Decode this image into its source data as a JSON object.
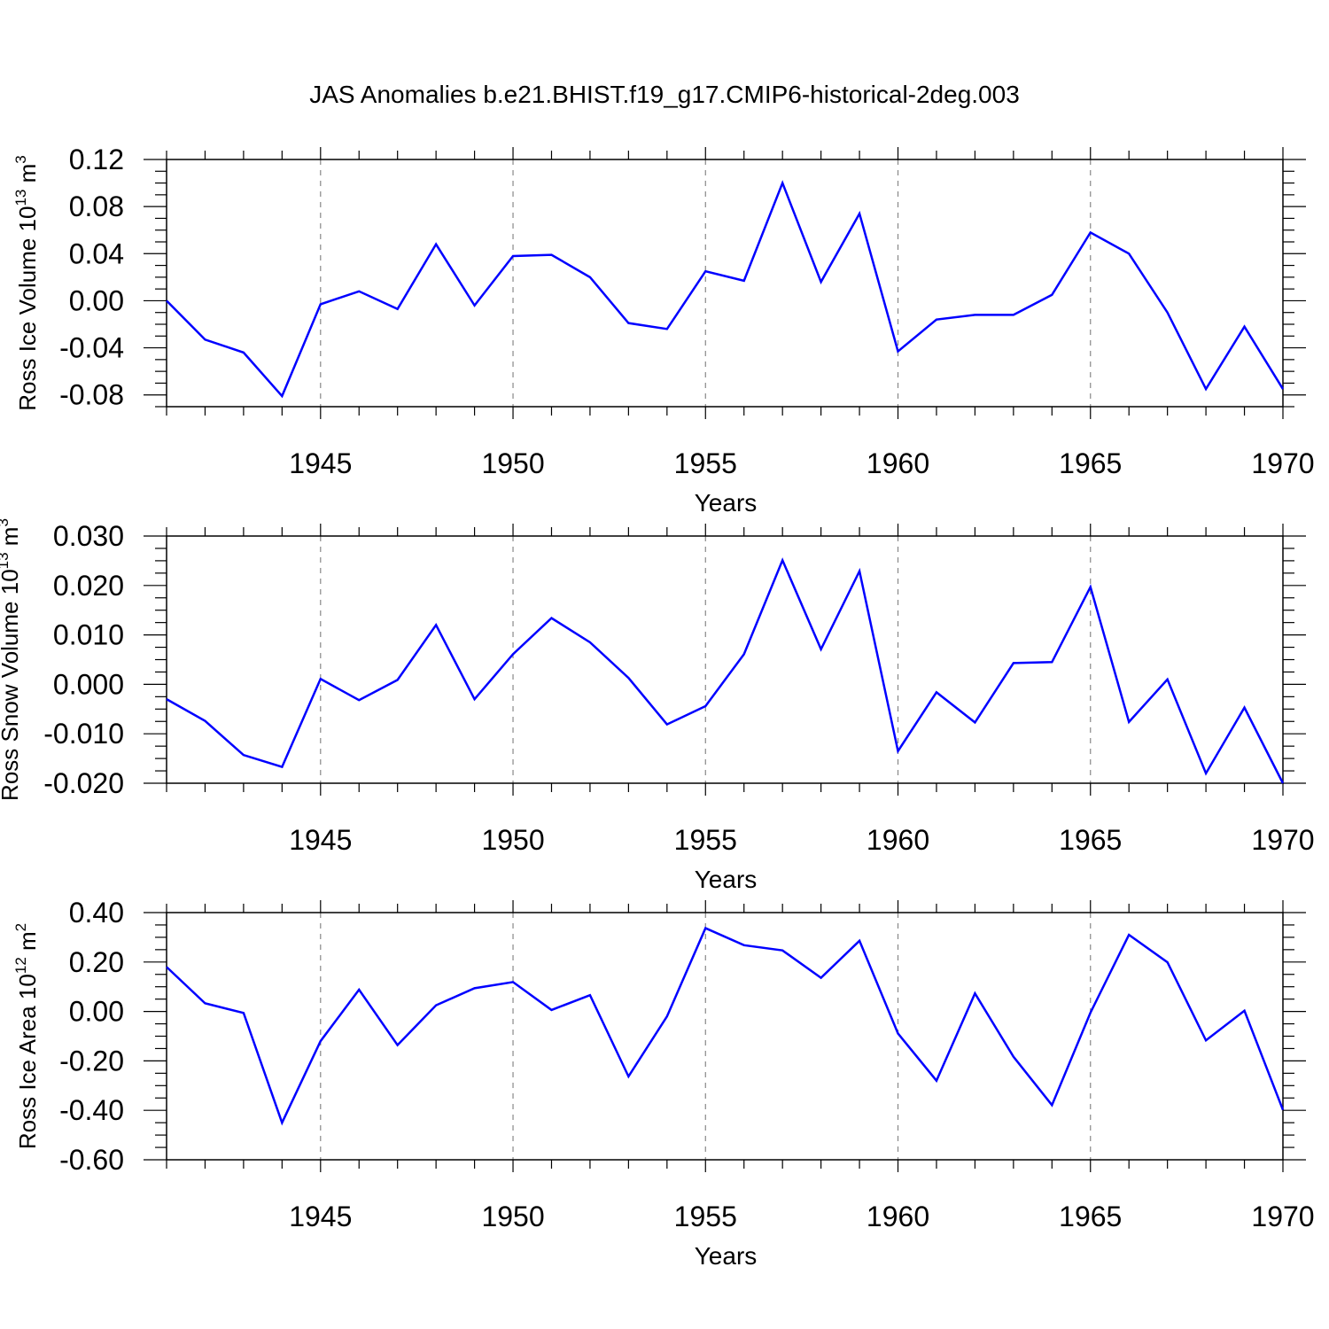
{
  "title": "JAS Anomalies b.e21.BHIST.f19_g17.CMIP6-historical-2deg.003",
  "chart_data": [
    {
      "type": "line",
      "xlabel": "Years",
      "ylabel": {
        "text": "Ross Ice Volume 10",
        "sup": "13",
        "unit": " m",
        "unit_sup": "3"
      },
      "xlim": [
        1941,
        1970
      ],
      "ylim": [
        -0.09,
        0.12
      ],
      "xticks": [
        "1945",
        "1950",
        "1955",
        "1960",
        "1965",
        "1970"
      ],
      "yticks": [
        "0.12",
        "0.08",
        "0.04",
        "0.00",
        "-0.04",
        "-0.08"
      ],
      "grid": "dashed vertical at major x ticks",
      "color": "#0000ff",
      "x": [
        1941,
        1942,
        1943,
        1944,
        1945,
        1946,
        1947,
        1948,
        1949,
        1950,
        1951,
        1952,
        1953,
        1954,
        1955,
        1956,
        1957,
        1958,
        1959,
        1960,
        1961,
        1962,
        1963,
        1964,
        1965,
        1966,
        1967,
        1968,
        1969,
        1970
      ],
      "y": [
        0.0,
        -0.033,
        -0.044,
        -0.081,
        -0.003,
        0.008,
        -0.007,
        0.048,
        -0.004,
        0.038,
        0.039,
        0.02,
        -0.019,
        -0.024,
        0.025,
        0.017,
        0.1,
        0.016,
        0.074,
        -0.043,
        -0.016,
        -0.012,
        -0.012,
        0.005,
        0.058,
        0.04,
        -0.01,
        -0.075,
        -0.022,
        -0.075
      ]
    },
    {
      "type": "line",
      "xlabel": "Years",
      "ylabel": {
        "text": "Ross Snow Volume 10",
        "sup": "13",
        "unit": " m",
        "unit_sup": "3"
      },
      "xlim": [
        1941,
        1970
      ],
      "ylim": [
        -0.02,
        0.03
      ],
      "xticks": [
        "1945",
        "1950",
        "1955",
        "1960",
        "1965",
        "1970"
      ],
      "yticks": [
        "0.030",
        "0.020",
        "0.010",
        "0.000",
        "-0.010",
        "-0.020"
      ],
      "grid": "dashed vertical at major x ticks",
      "color": "#0000ff",
      "x": [
        1941,
        1942,
        1943,
        1944,
        1945,
        1946,
        1947,
        1948,
        1949,
        1950,
        1951,
        1952,
        1953,
        1954,
        1955,
        1956,
        1957,
        1958,
        1959,
        1960,
        1961,
        1962,
        1963,
        1964,
        1965,
        1966,
        1967,
        1968,
        1969,
        1970
      ],
      "y": [
        -0.003,
        -0.0074,
        -0.0143,
        -0.0167,
        0.0011,
        -0.0032,
        0.0009,
        0.012,
        -0.003,
        0.0061,
        0.0134,
        0.0085,
        0.0013,
        -0.0081,
        -0.0044,
        0.0061,
        0.0251,
        0.0071,
        0.0229,
        -0.0135,
        -0.0016,
        -0.0077,
        0.0043,
        0.0045,
        0.0197,
        -0.0076,
        0.001,
        -0.018,
        -0.0047,
        -0.02
      ]
    },
    {
      "type": "line",
      "xlabel": "Years",
      "ylabel": {
        "text": "Ross Ice Area 10",
        "sup": "12",
        "unit": " m",
        "unit_sup": "2"
      },
      "xlim": [
        1941,
        1970
      ],
      "ylim": [
        -0.6,
        0.4
      ],
      "xticks": [
        "1945",
        "1950",
        "1955",
        "1960",
        "1965",
        "1970"
      ],
      "yticks": [
        "0.40",
        "0.20",
        "0.00",
        "-0.20",
        "-0.40",
        "-0.60"
      ],
      "grid": "dashed vertical at major x ticks",
      "color": "#0000ff",
      "x": [
        1941,
        1942,
        1943,
        1944,
        1945,
        1946,
        1947,
        1948,
        1949,
        1950,
        1951,
        1952,
        1953,
        1954,
        1955,
        1956,
        1957,
        1958,
        1959,
        1960,
        1961,
        1962,
        1963,
        1964,
        1965,
        1966,
        1967,
        1968,
        1969,
        1970
      ],
      "y": [
        0.18,
        0.033,
        -0.006,
        -0.45,
        -0.12,
        0.088,
        -0.136,
        0.025,
        0.094,
        0.119,
        0.006,
        0.066,
        -0.263,
        -0.02,
        0.337,
        0.268,
        0.247,
        0.136,
        0.286,
        -0.089,
        -0.28,
        0.073,
        -0.183,
        -0.379,
        -0.005,
        0.31,
        0.199,
        -0.117,
        0.003,
        -0.398
      ]
    }
  ]
}
